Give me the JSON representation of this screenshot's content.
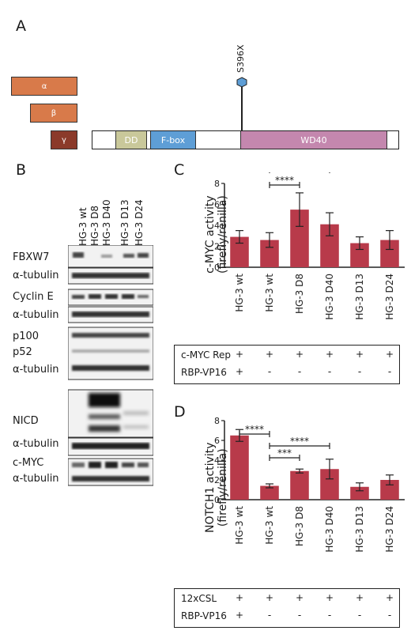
{
  "panels": {
    "a": "A",
    "b": "B",
    "c": "C",
    "d": "D"
  },
  "panel_a": {
    "isoforms": [
      {
        "label": "α",
        "color": "#d87a4a"
      },
      {
        "label": "β",
        "color": "#d87a4a"
      },
      {
        "label": "γ",
        "color": "#8b3a2a"
      }
    ],
    "domains": [
      {
        "label": "DD",
        "color": "#c9c89a"
      },
      {
        "label": "F-box",
        "color": "#5e9ed6"
      },
      {
        "label": "WD40",
        "color": "#c487ae"
      }
    ],
    "mutation": "S396X",
    "mutation_color": "#5e9ed6"
  },
  "panel_b": {
    "lanes": [
      "HG-3 wt",
      "HG-3 D8",
      "HG-3 D40",
      "HG-3 D13",
      "HG-3 D24"
    ],
    "blots": [
      "FBXW7",
      "α-tubulin",
      "Cyclin E",
      "α-tubulin",
      "p100",
      "p52",
      "α-tubulin",
      "NICD",
      "α-tubulin",
      "c-MYC",
      "α-tubulin"
    ]
  },
  "chart_data": [
    {
      "type": "bar",
      "title": "",
      "ylabel": "c-MYC activity (firefly/renilla)",
      "ylabel_lines": [
        "c-MYC activity",
        "(firefly/renilla)"
      ],
      "categories": [
        "HG-3 wt",
        "HG-3 wt",
        "HG-3 D8",
        "HG-3 D40",
        "HG-3 D13",
        "HG-3 D24"
      ],
      "values": [
        0.29,
        0.26,
        0.55,
        0.41,
        0.23,
        0.26
      ],
      "errors": [
        0.06,
        0.07,
        0.16,
        0.11,
        0.06,
        0.09
      ],
      "ylim": [
        0,
        0.8
      ],
      "yticks": [
        "0.0",
        "0.2",
        "0.4",
        "0.6",
        "0.8"
      ],
      "bar_color": "#b83a4a",
      "significance": [
        {
          "label": "****",
          "from": 1,
          "to": 2
        },
        {
          "label": "*",
          "from": 1,
          "to": 3
        }
      ],
      "table": {
        "rows": [
          {
            "label": "c-MYC Rep",
            "cells": [
              "+",
              "+",
              "+",
              "+",
              "+",
              "+"
            ]
          },
          {
            "label": "RBP-VP16",
            "cells": [
              "+",
              "-",
              "-",
              "-",
              "-",
              "-"
            ]
          }
        ]
      }
    },
    {
      "type": "bar",
      "title": "",
      "ylabel": "NOTCH1 activity (firefly/renilla)",
      "ylabel_lines": [
        "NOTCH1 activity",
        "(firefly/renilla)"
      ],
      "categories": [
        "HG-3 wt",
        "HG-3 wt",
        "HG-3 D8",
        "HG-3 D40",
        "HG-3 D13",
        "HG-3 D24"
      ],
      "values": [
        0.65,
        0.14,
        0.29,
        0.31,
        0.13,
        0.2
      ],
      "errors": [
        0.06,
        0.02,
        0.02,
        0.1,
        0.04,
        0.05
      ],
      "ylim": [
        0,
        0.8
      ],
      "yticks": [
        "0.0",
        "0.2",
        "0.4",
        "0.6",
        "0.8"
      ],
      "bar_color": "#b83a4a",
      "significance": [
        {
          "label": "****",
          "from": 0,
          "to": 1
        },
        {
          "label": "***",
          "from": 1,
          "to": 2
        },
        {
          "label": "****",
          "from": 1,
          "to": 3
        }
      ],
      "table": {
        "rows": [
          {
            "label": "12xCSL",
            "cells": [
              "+",
              "+",
              "+",
              "+",
              "+",
              "+"
            ]
          },
          {
            "label": "RBP-VP16",
            "cells": [
              "+",
              "-",
              "-",
              "-",
              "-",
              "-"
            ]
          }
        ]
      }
    }
  ]
}
